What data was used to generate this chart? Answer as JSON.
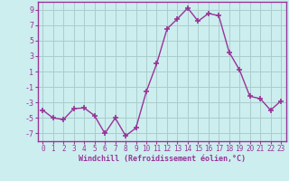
{
  "x": [
    0,
    1,
    2,
    3,
    4,
    5,
    6,
    7,
    8,
    9,
    10,
    11,
    12,
    13,
    14,
    15,
    16,
    17,
    18,
    19,
    20,
    21,
    22,
    23
  ],
  "y": [
    -4.0,
    -5.0,
    -5.2,
    -3.8,
    -3.7,
    -4.7,
    -7.0,
    -5.0,
    -7.3,
    -6.3,
    -1.6,
    2.0,
    6.5,
    7.8,
    9.2,
    7.5,
    8.5,
    8.2,
    3.5,
    1.2,
    -2.2,
    -2.5,
    -4.0,
    -2.8
  ],
  "line_color": "#993399",
  "marker": "+",
  "bg_color": "#cceeee",
  "grid_color": "#aacccc",
  "xlabel": "Windchill (Refroidissement éolien,°C)",
  "xlim": [
    -0.5,
    23.5
  ],
  "ylim": [
    -8,
    10
  ],
  "yticks": [
    -7,
    -5,
    -3,
    -1,
    1,
    3,
    5,
    7,
    9
  ],
  "xticks": [
    0,
    1,
    2,
    3,
    4,
    5,
    6,
    7,
    8,
    9,
    10,
    11,
    12,
    13,
    14,
    15,
    16,
    17,
    18,
    19,
    20,
    21,
    22,
    23
  ],
  "xlabel_color": "#993399",
  "tick_color": "#993399",
  "axis_color": "#993399"
}
